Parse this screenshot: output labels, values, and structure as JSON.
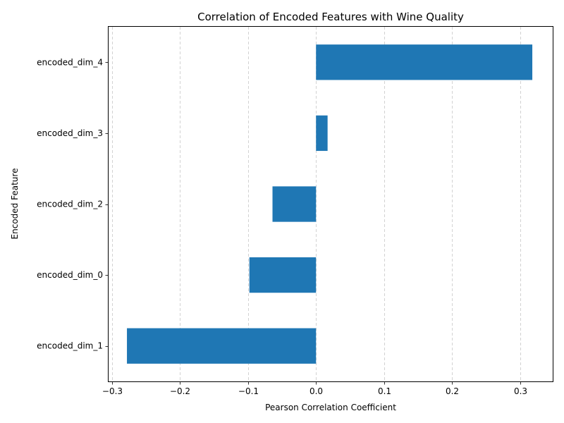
{
  "chart_data": {
    "type": "bar",
    "orientation": "horizontal",
    "title": "Correlation of Encoded Features with Wine Quality",
    "xlabel": "Pearson Correlation Coefficient",
    "ylabel": "Encoded Feature",
    "categories": [
      "encoded_dim_1",
      "encoded_dim_0",
      "encoded_dim_2",
      "encoded_dim_3",
      "encoded_dim_4"
    ],
    "values": [
      -0.278,
      -0.098,
      -0.064,
      0.017,
      0.318
    ],
    "xlim": [
      -0.305,
      0.348
    ],
    "xticks": [
      -0.3,
      -0.2,
      -0.1,
      0.0,
      0.1,
      0.2,
      0.3
    ],
    "xtick_labels": [
      "−0.3",
      "−0.2",
      "−0.1",
      "0.0",
      "0.1",
      "0.2",
      "0.3"
    ],
    "grid": "x-axis dashed",
    "bar_color": "#1f77b4",
    "grid_color": "#c8c8c8"
  }
}
